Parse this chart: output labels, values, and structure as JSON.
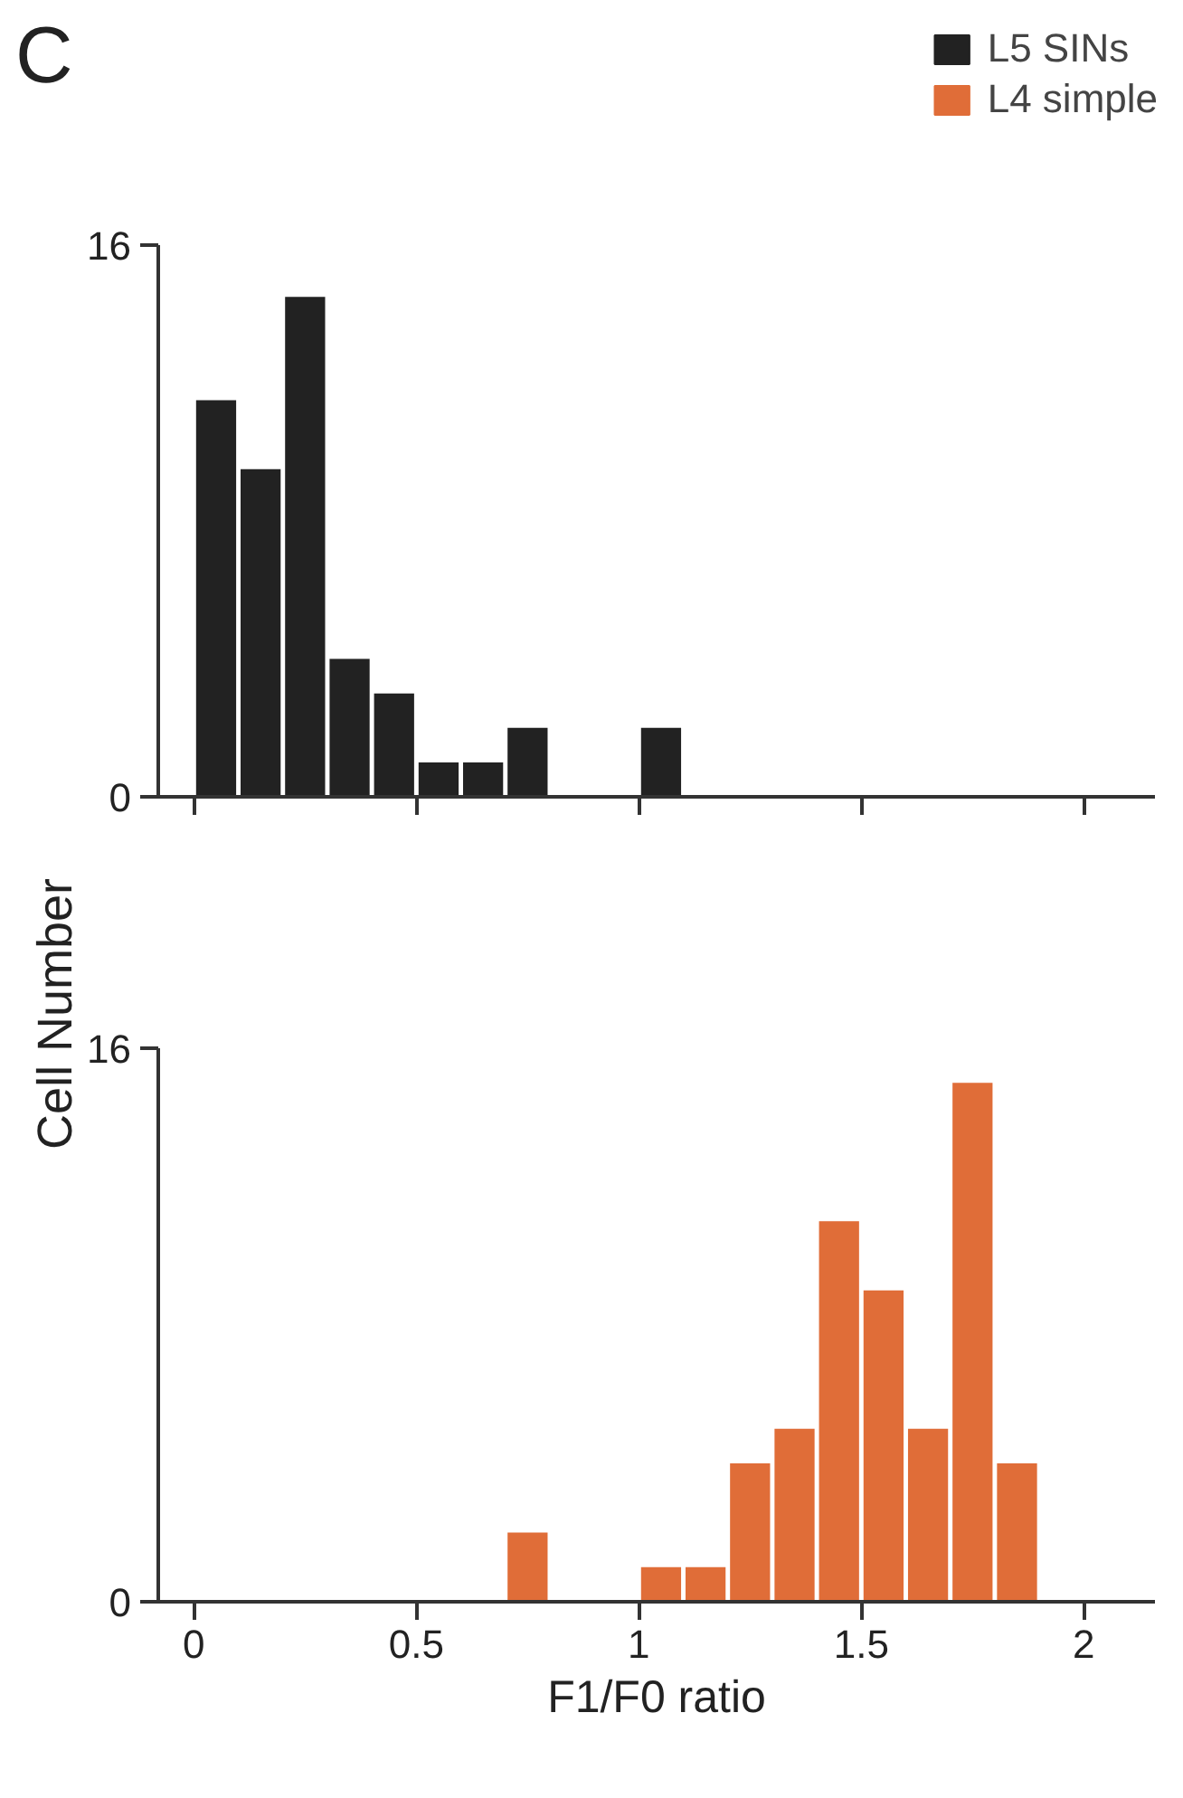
{
  "chart_data": [
    {
      "type": "histogram",
      "title": "C",
      "ylabel": "Cell Number",
      "bins": [
        0,
        0.1,
        0.2,
        0.3,
        0.4,
        0.5,
        0.6,
        0.7,
        0.8,
        0.9,
        1.0,
        1.1
      ],
      "series": [
        {
          "name": "L5 SINs",
          "color": "#222222",
          "values": [
            11.5,
            9.5,
            14.5,
            4,
            3,
            1,
            1,
            2,
            0,
            0,
            2
          ]
        }
      ],
      "xlim": [
        -0.08,
        2.16
      ],
      "xticks": [
        {
          "value": 0,
          "label": null
        },
        {
          "value": 0.5,
          "label": null
        },
        {
          "value": 1,
          "label": null
        },
        {
          "value": 1.5,
          "label": null
        },
        {
          "value": 2,
          "label": null
        }
      ],
      "ylim": [
        0,
        16
      ],
      "yticks": [
        0,
        16
      ],
      "tick_labels": "y",
      "grid": false,
      "legend": "top right"
    },
    {
      "type": "histogram",
      "xlabel": "F1/F0 ratio",
      "bins": [
        0.7,
        0.8,
        0.9,
        1.0,
        1.1,
        1.2,
        1.3,
        1.4,
        1.5,
        1.6,
        1.7,
        1.8,
        1.9
      ],
      "series": [
        {
          "name": "L4 simple",
          "color": "#e06d38",
          "values": [
            2,
            0,
            0,
            1,
            1,
            4,
            5,
            11,
            9,
            5,
            15,
            4
          ]
        }
      ],
      "xlim": [
        -0.08,
        2.16
      ],
      "xticks": [
        0,
        0.5,
        1,
        1.5,
        2
      ],
      "ylim": [
        0,
        16
      ],
      "yticks": [
        0,
        16
      ],
      "grid": false,
      "legend": "top right"
    }
  ]
}
